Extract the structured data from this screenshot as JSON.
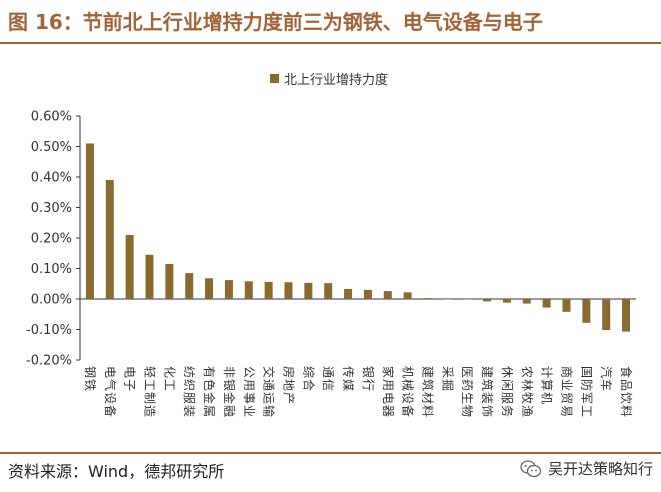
{
  "header": {
    "title": "图 16：节前北上行业增持力度前三为钢铁、电气设备与电子"
  },
  "footer": {
    "source": "资料来源：Wind，德邦研究所",
    "watermark": "吴开达策略知行"
  },
  "colors": {
    "bar": "#8b6a2f",
    "accent": "#a0643a",
    "axis": "#333333"
  },
  "chart_data": {
    "type": "bar",
    "title": "",
    "xlabel": "",
    "ylabel": "",
    "ylim": [
      -0.002,
      0.006
    ],
    "yticks": [
      "0.60%",
      "0.50%",
      "0.40%",
      "0.30%",
      "0.20%",
      "0.10%",
      "0.00%",
      "-0.10%",
      "-0.20%"
    ],
    "legend": {
      "position": "top-center"
    },
    "grid": false,
    "series": [
      {
        "name": "北上行业增持力度",
        "values": [
          0.0051,
          0.0039,
          0.0021,
          0.00145,
          0.00115,
          0.00085,
          0.00068,
          0.00062,
          0.00058,
          0.00056,
          0.00055,
          0.00053,
          0.00052,
          0.00033,
          0.0003,
          0.00026,
          0.00022,
          3e-05,
          0.0,
          0.0,
          -8e-05,
          -0.00012,
          -0.00015,
          -0.00028,
          -0.00042,
          -0.00078,
          -0.00102,
          -0.00107
        ]
      }
    ],
    "categories": [
      "钢铁",
      "电气设备",
      "电子",
      "轻工制造",
      "化工",
      "纺织服装",
      "有色金属",
      "非银金融",
      "公用事业",
      "交通运输",
      "房地产",
      "综合",
      "通信",
      "传媒",
      "银行",
      "家用电器",
      "机械设备",
      "建筑材料",
      "采掘",
      "医药生物",
      "建筑装饰",
      "休闲服务",
      "农林牧渔",
      "计算机",
      "商业贸易",
      "国防军工",
      "汽车",
      "食品饮料"
    ]
  }
}
